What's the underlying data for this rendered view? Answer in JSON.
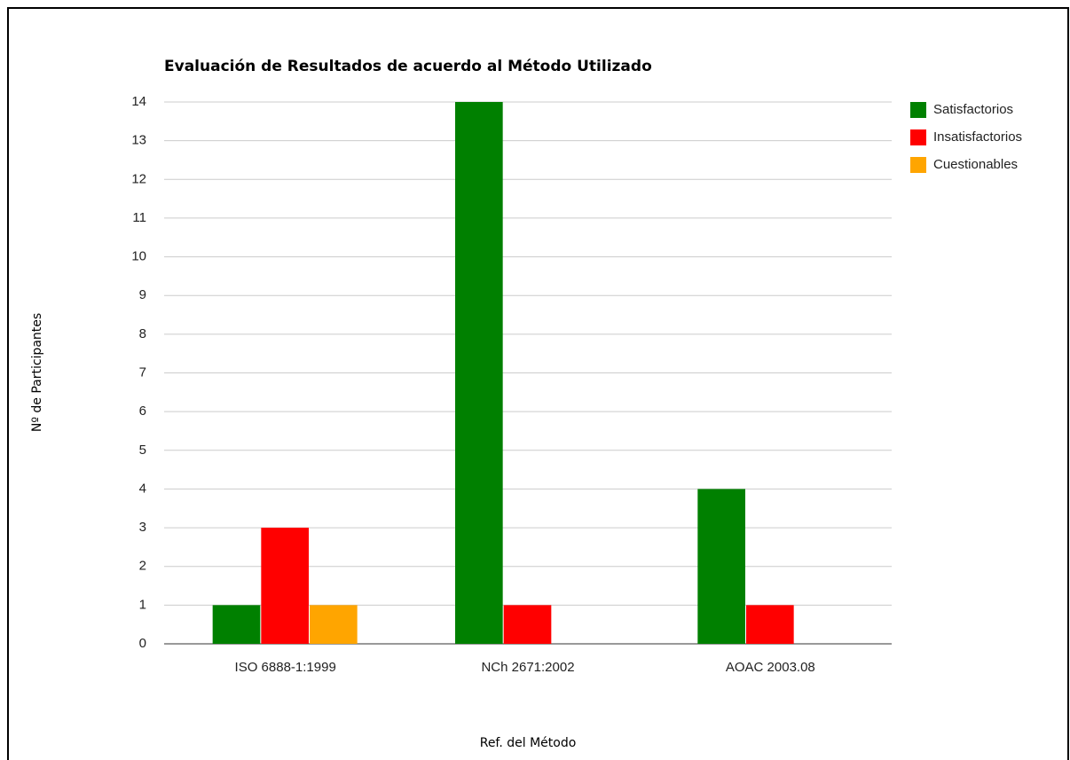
{
  "chart_data": {
    "type": "bar",
    "title": "Evaluación de Resultados de acuerdo al Método Utilizado",
    "x_label": "Ref. del Método",
    "y_label": "Nº de Participantes",
    "categories": [
      "ISO 6888-1:1999",
      "NCh 2671:2002",
      "AOAC 2003.08"
    ],
    "series": [
      {
        "name": "Satisfactorios",
        "color": "#008000",
        "values": [
          1,
          14,
          4
        ]
      },
      {
        "name": "Insatisfactorios",
        "color": "#ff0000",
        "values": [
          3,
          1,
          1
        ]
      },
      {
        "name": "Cuestionables",
        "color": "#ffa500",
        "values": [
          1,
          0,
          0
        ]
      }
    ],
    "ylim": [
      0,
      14
    ],
    "yticks": [
      0,
      1,
      2,
      3,
      4,
      5,
      6,
      7,
      8,
      9,
      10,
      11,
      12,
      13,
      14
    ],
    "grid": true,
    "legend": "right"
  }
}
